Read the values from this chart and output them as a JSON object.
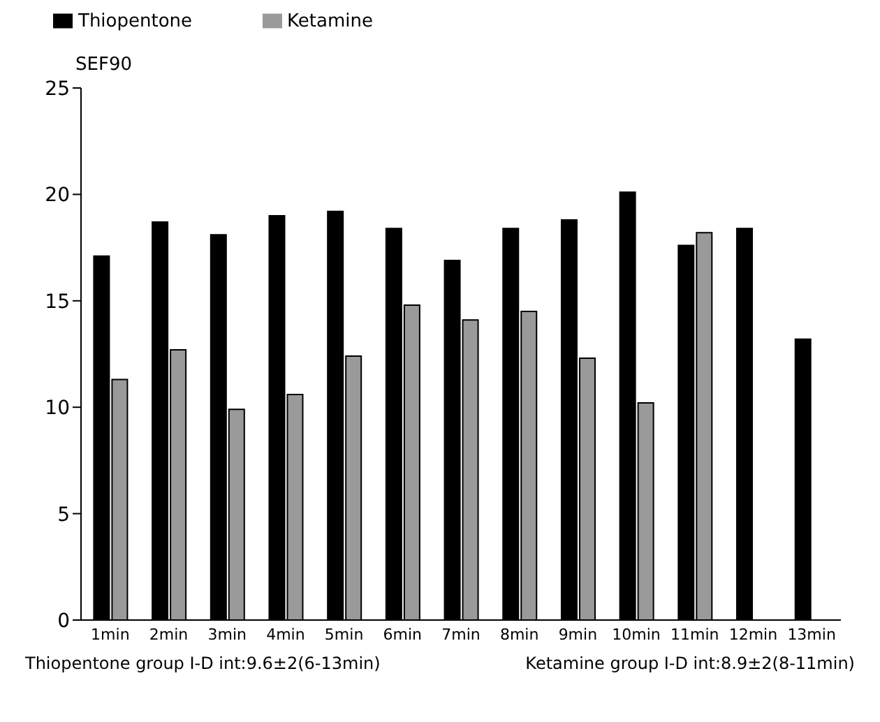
{
  "chart_data": {
    "type": "bar",
    "ylabel": "SEF90",
    "categories": [
      "1min",
      "2min",
      "3min",
      "4min",
      "5min",
      "6min",
      "7min",
      "8min",
      "9min",
      "10min",
      "11min",
      "12min",
      "13min"
    ],
    "series": [
      {
        "name": "Thiopentone",
        "color": "#000000",
        "values": [
          17.1,
          18.7,
          18.1,
          19.0,
          19.2,
          18.4,
          16.9,
          18.4,
          18.8,
          20.1,
          17.6,
          18.4,
          13.2
        ]
      },
      {
        "name": "Ketamine",
        "color": "#9a9a9a",
        "values": [
          11.3,
          12.7,
          9.9,
          10.6,
          12.4,
          14.8,
          14.1,
          14.5,
          12.3,
          10.2,
          18.2,
          null,
          null
        ]
      }
    ],
    "ylim": [
      0,
      25
    ],
    "yticks": [
      0,
      5,
      10,
      15,
      20,
      25
    ],
    "grid": false,
    "legend": "top left",
    "annotations": [
      "Thiopentone group I-D int:9.6±2(6-13min)",
      "Ketamine group I-D int:8.9±2(8-11min)"
    ]
  }
}
